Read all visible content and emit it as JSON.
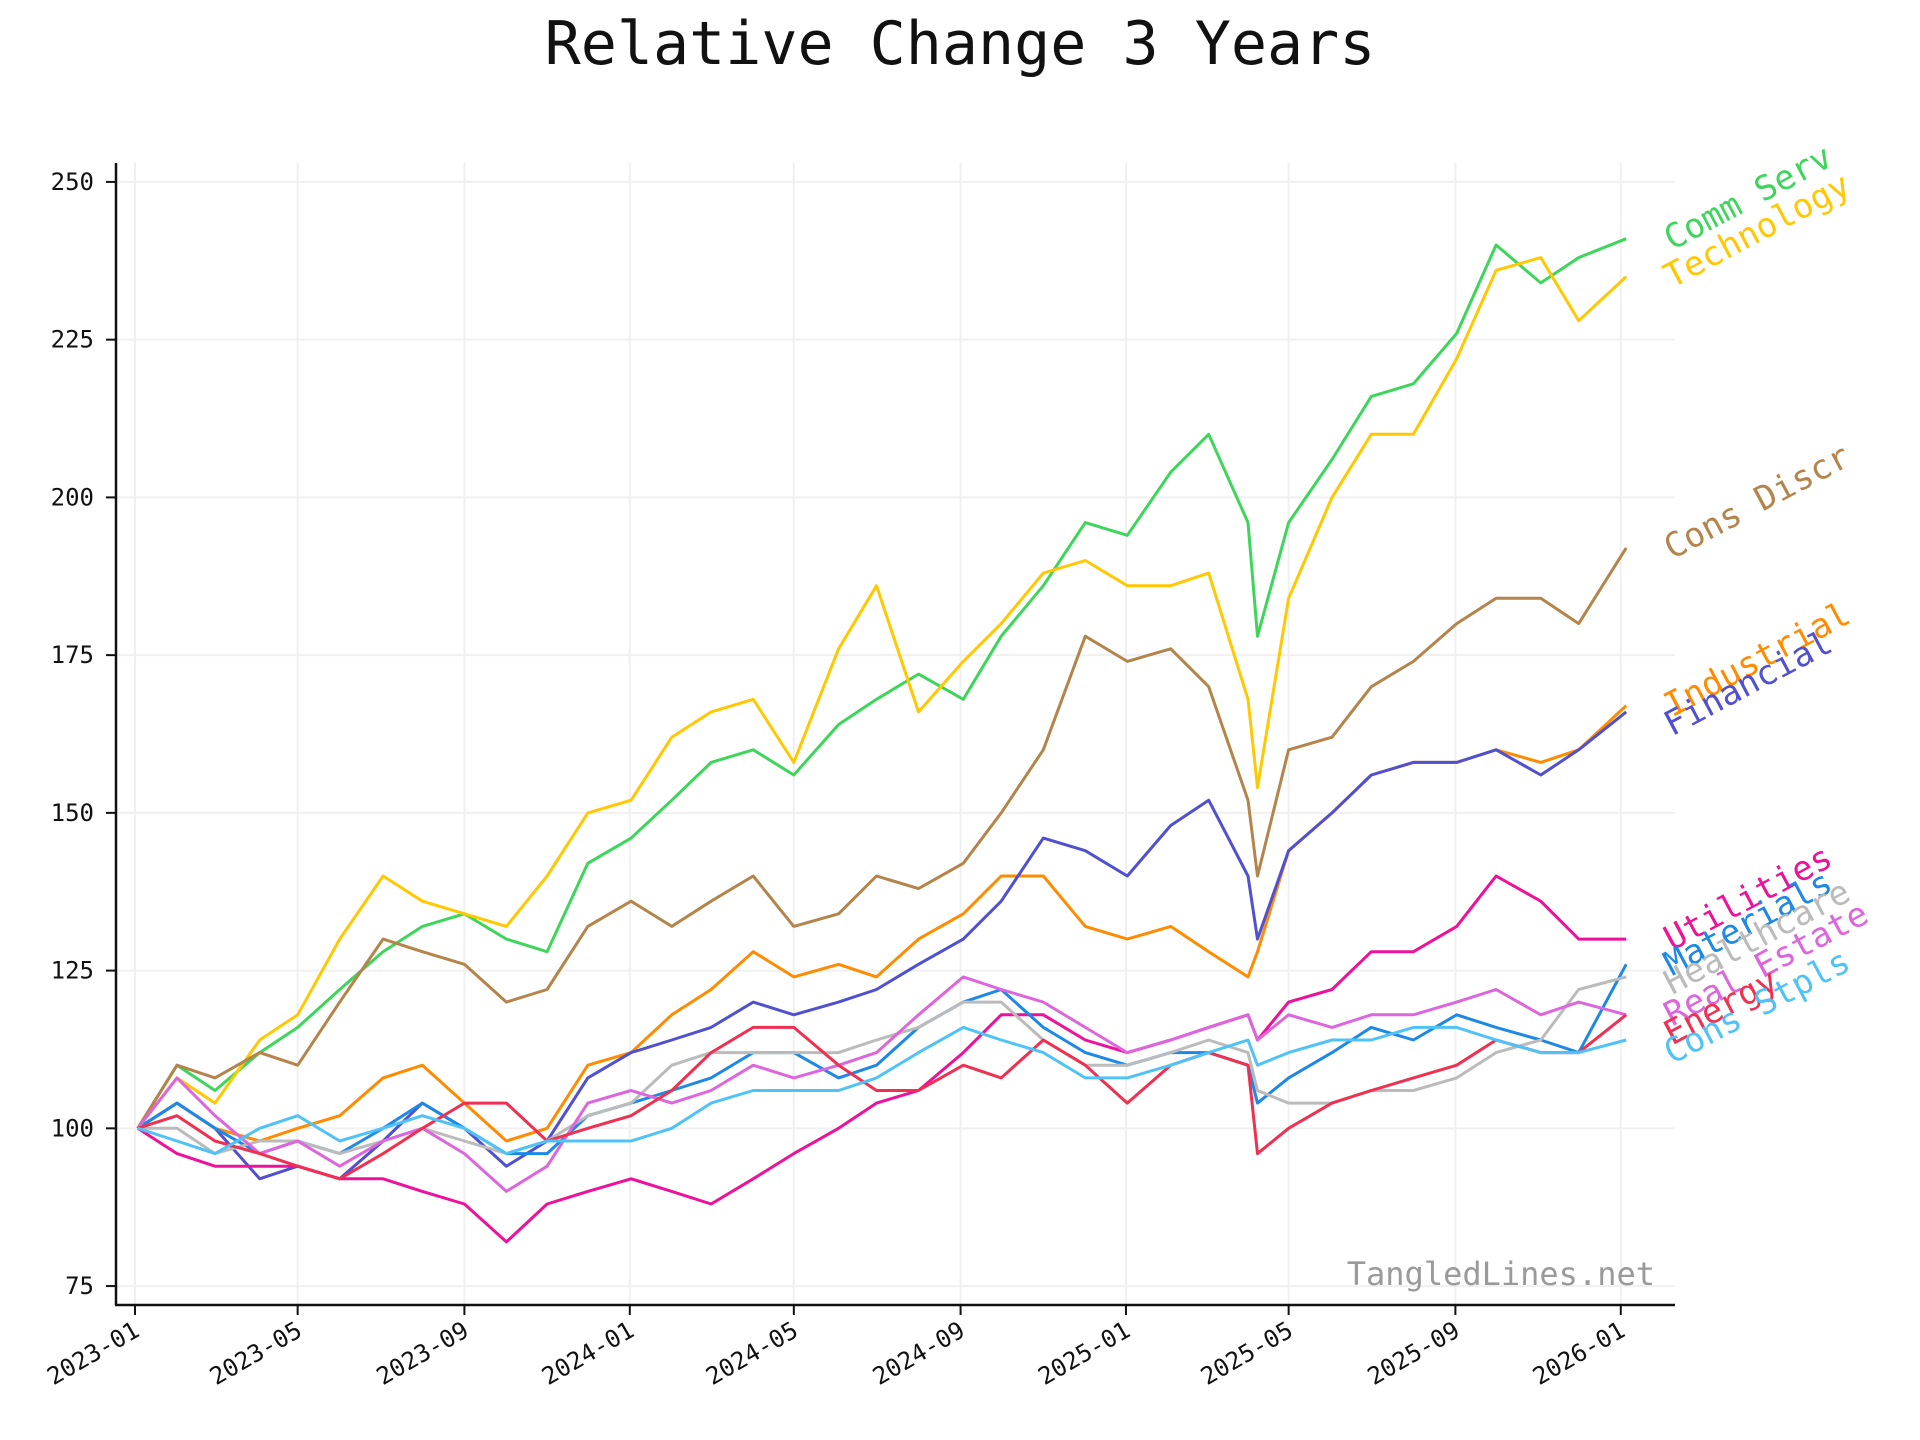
{
  "chart_data": {
    "type": "line",
    "title": "Relative Change 3 Years",
    "xlabel": "",
    "ylabel": "",
    "watermark": "TangledLines.net",
    "x_ticks": [
      "2023-01",
      "2023-05",
      "2023-09",
      "2024-01",
      "2024-05",
      "2024-09",
      "2025-01",
      "2025-05",
      "2025-09",
      "2026-01"
    ],
    "y_ticks": [
      75,
      100,
      125,
      150,
      175,
      200,
      225,
      250
    ],
    "xlim": [
      "2022-12-18",
      "2026-02-10"
    ],
    "ylim": [
      72,
      253
    ],
    "grid": true,
    "x": [
      "2023-01-03",
      "2023-02-01",
      "2023-03-01",
      "2023-04-03",
      "2023-05-01",
      "2023-06-01",
      "2023-07-03",
      "2023-08-01",
      "2023-09-01",
      "2023-10-02",
      "2023-11-01",
      "2023-12-01",
      "2024-01-02",
      "2024-02-01",
      "2024-03-01",
      "2024-04-01",
      "2024-05-01",
      "2024-06-03",
      "2024-07-01",
      "2024-08-01",
      "2024-09-03",
      "2024-10-01",
      "2024-11-01",
      "2024-12-02",
      "2025-01-02",
      "2025-02-03",
      "2025-03-03",
      "2025-04-01",
      "2025-04-08",
      "2025-05-01",
      "2025-06-02",
      "2025-07-01",
      "2025-08-01",
      "2025-09-02",
      "2025-10-01",
      "2025-11-03",
      "2025-12-01",
      "2026-01-05"
    ],
    "series": [
      {
        "name": "Comm Serv",
        "color": "#3dd65a",
        "values": [
          100,
          110,
          106,
          112,
          116,
          122,
          128,
          132,
          134,
          130,
          128,
          142,
          146,
          152,
          158,
          160,
          156,
          164,
          168,
          172,
          168,
          178,
          186,
          196,
          194,
          204,
          210,
          196,
          178,
          196,
          206,
          216,
          218,
          226,
          240,
          234,
          238,
          241
        ]
      },
      {
        "name": "Technology",
        "color": "#ffc800",
        "values": [
          100,
          108,
          104,
          114,
          118,
          130,
          140,
          136,
          134,
          132,
          140,
          150,
          152,
          162,
          166,
          168,
          158,
          176,
          186,
          166,
          174,
          180,
          188,
          190,
          186,
          186,
          188,
          168,
          154,
          184,
          200,
          210,
          210,
          222,
          236,
          238,
          228,
          235
        ]
      },
      {
        "name": "Cons Discr",
        "color": "#b5844b",
        "values": [
          100,
          110,
          108,
          112,
          110,
          120,
          130,
          128,
          126,
          120,
          122,
          132,
          136,
          132,
          136,
          140,
          132,
          134,
          140,
          138,
          142,
          150,
          160,
          178,
          174,
          176,
          170,
          152,
          140,
          160,
          162,
          170,
          174,
          180,
          184,
          184,
          180,
          192
        ]
      },
      {
        "name": "Industrial",
        "color": "#ff8c00",
        "values": [
          100,
          104,
          100,
          98,
          100,
          102,
          108,
          110,
          104,
          98,
          100,
          110,
          112,
          118,
          122,
          128,
          124,
          126,
          124,
          130,
          134,
          140,
          140,
          132,
          130,
          132,
          128,
          124,
          128,
          144,
          150,
          156,
          158,
          158,
          160,
          158,
          160,
          167
        ]
      },
      {
        "name": "Financial",
        "color": "#5050d0",
        "values": [
          100,
          104,
          100,
          92,
          94,
          92,
          98,
          104,
          100,
          94,
          98,
          108,
          112,
          114,
          116,
          120,
          118,
          120,
          122,
          126,
          130,
          136,
          146,
          144,
          140,
          148,
          152,
          140,
          130,
          144,
          150,
          156,
          158,
          158,
          160,
          156,
          160,
          166
        ]
      },
      {
        "name": "Utilities",
        "color": "#ee1199",
        "values": [
          100,
          96,
          94,
          94,
          94,
          92,
          92,
          90,
          88,
          82,
          88,
          90,
          92,
          90,
          88,
          92,
          96,
          100,
          104,
          106,
          112,
          118,
          118,
          114,
          112,
          114,
          116,
          118,
          114,
          120,
          122,
          128,
          128,
          132,
          140,
          136,
          130,
          130
        ]
      },
      {
        "name": "Materials",
        "color": "#1e88e5",
        "values": [
          100,
          104,
          100,
          96,
          98,
          96,
          100,
          104,
          100,
          96,
          96,
          102,
          104,
          106,
          108,
          112,
          112,
          108,
          110,
          116,
          120,
          122,
          116,
          112,
          110,
          112,
          112,
          110,
          104,
          108,
          112,
          116,
          114,
          118,
          116,
          114,
          112,
          126
        ]
      },
      {
        "name": "Healthcare",
        "color": "#bbbbbb",
        "values": [
          100,
          100,
          96,
          98,
          98,
          96,
          98,
          100,
          98,
          96,
          98,
          102,
          104,
          110,
          112,
          112,
          112,
          112,
          114,
          116,
          120,
          120,
          114,
          110,
          110,
          112,
          114,
          112,
          106,
          104,
          104,
          106,
          106,
          108,
          112,
          114,
          122,
          124
        ]
      },
      {
        "name": "Real Estate",
        "color": "#dd66dd",
        "values": [
          100,
          108,
          102,
          96,
          98,
          94,
          98,
          100,
          96,
          90,
          94,
          104,
          106,
          104,
          106,
          110,
          108,
          110,
          112,
          118,
          124,
          122,
          120,
          116,
          112,
          114,
          116,
          118,
          114,
          118,
          116,
          118,
          118,
          120,
          122,
          118,
          120,
          118
        ]
      },
      {
        "name": "Energy",
        "color": "#f03050",
        "values": [
          100,
          102,
          98,
          96,
          94,
          92,
          96,
          100,
          104,
          104,
          98,
          100,
          102,
          106,
          112,
          116,
          116,
          110,
          106,
          106,
          110,
          108,
          114,
          110,
          104,
          110,
          112,
          110,
          96,
          100,
          104,
          106,
          108,
          110,
          114,
          112,
          112,
          118
        ]
      },
      {
        "name": "Cons Stpls",
        "color": "#4fc3f7",
        "values": [
          100,
          98,
          96,
          100,
          102,
          98,
          100,
          102,
          100,
          96,
          98,
          98,
          98,
          100,
          104,
          106,
          106,
          106,
          108,
          112,
          116,
          114,
          112,
          108,
          108,
          110,
          112,
          114,
          110,
          112,
          114,
          114,
          116,
          116,
          114,
          112,
          112,
          114
        ]
      }
    ]
  }
}
